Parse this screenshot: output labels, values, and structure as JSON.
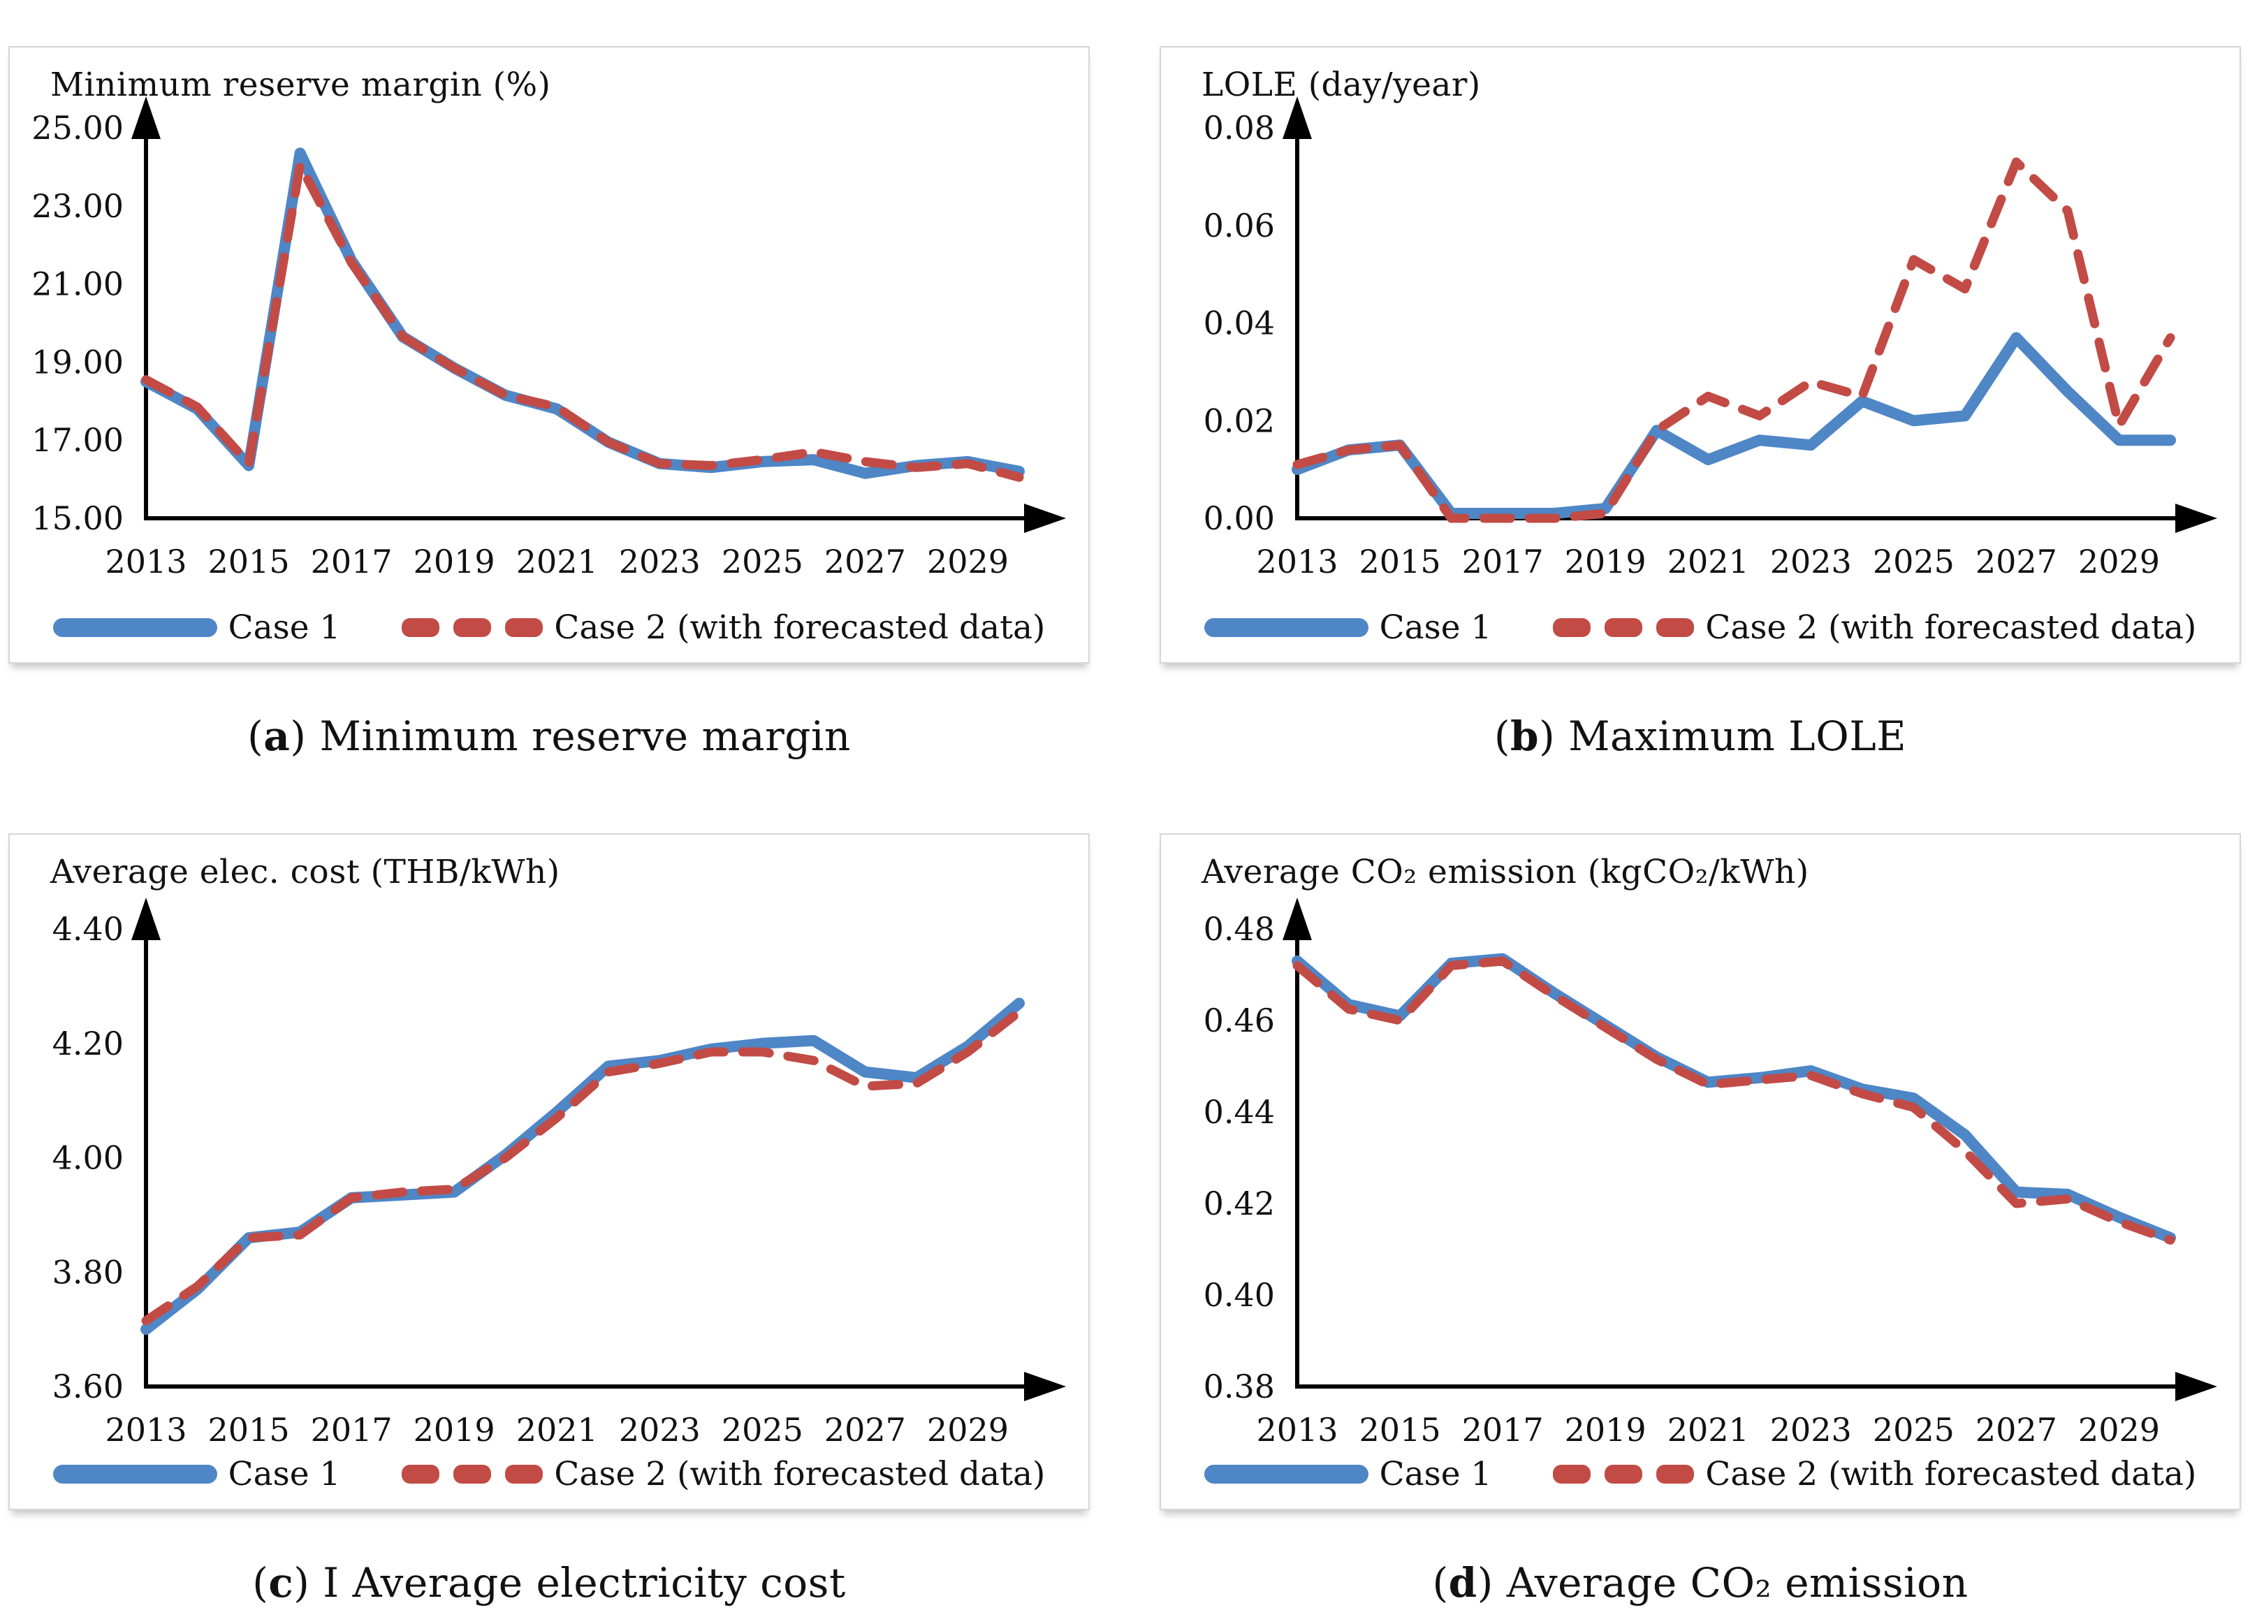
{
  "legend": {
    "case1_label": "Case 1",
    "case2_label": "Case 2 (with forecasted data)"
  },
  "colors": {
    "case1": "#4e86c6",
    "case2": "#c24b45",
    "axis": "#000000",
    "text": "#111111",
    "panel_border": "#d6d6d6"
  },
  "chart_data": [
    {
      "id": "a",
      "type": "line",
      "title": "Minimum reserve margin (%)",
      "caption": {
        "open": "(",
        "letter": "a",
        "close": ") ",
        "text": "Minimum reserve margin"
      },
      "xlabel": "",
      "ylabel": "Minimum reserve margin (%)",
      "ylim": [
        15.0,
        25.0
      ],
      "ytick_labels": [
        "15.00",
        "17.00",
        "19.00",
        "21.00",
        "23.00",
        "25.00"
      ],
      "x": [
        2013,
        2014,
        2015,
        2016,
        2017,
        2018,
        2019,
        2020,
        2021,
        2022,
        2023,
        2024,
        2025,
        2026,
        2027,
        2028,
        2029,
        2030
      ],
      "xtick_labels": [
        "2013",
        "2015",
        "2017",
        "2019",
        "2021",
        "2023",
        "2025",
        "2027",
        "2029"
      ],
      "grid": false,
      "legend_position": "bottom",
      "series": [
        {
          "name": "Case 1",
          "style": "solid",
          "color_key": "case1",
          "values": [
            18.5,
            17.8,
            16.35,
            24.35,
            21.6,
            19.65,
            18.85,
            18.15,
            17.8,
            16.95,
            16.4,
            16.3,
            16.45,
            16.5,
            16.15,
            16.35,
            16.45,
            16.2
          ]
        },
        {
          "name": "Case 2 (with forecasted data)",
          "style": "dashed",
          "color_key": "case2",
          "values": [
            18.55,
            17.85,
            16.4,
            24.05,
            21.55,
            19.65,
            18.85,
            18.15,
            17.85,
            16.95,
            16.4,
            16.35,
            16.5,
            16.7,
            16.45,
            16.3,
            16.4,
            16.05
          ]
        }
      ]
    },
    {
      "id": "b",
      "type": "line",
      "title": "LOLE (day/year)",
      "caption": {
        "open": "(",
        "letter": "b",
        "close": ") ",
        "text": "Maximum LOLE"
      },
      "xlabel": "",
      "ylabel": "LOLE (day/year)",
      "ylim": [
        0.0,
        0.08
      ],
      "ytick_labels": [
        "0.00",
        "0.02",
        "0.04",
        "0.06",
        "0.08"
      ],
      "x": [
        2013,
        2014,
        2015,
        2016,
        2017,
        2018,
        2019,
        2020,
        2021,
        2022,
        2023,
        2024,
        2025,
        2026,
        2027,
        2028,
        2029,
        2030
      ],
      "xtick_labels": [
        "2013",
        "2015",
        "2017",
        "2019",
        "2021",
        "2023",
        "2025",
        "2027",
        "2029"
      ],
      "grid": false,
      "legend_position": "bottom",
      "series": [
        {
          "name": "Case 1",
          "style": "solid",
          "color_key": "case1",
          "values": [
            0.01,
            0.014,
            0.015,
            0.001,
            0.001,
            0.001,
            0.002,
            0.018,
            0.012,
            0.016,
            0.015,
            0.024,
            0.02,
            0.021,
            0.037,
            0.026,
            0.016,
            0.016
          ]
        },
        {
          "name": "Case 2 (with forecasted data)",
          "style": "dashed",
          "color_key": "case2",
          "values": [
            0.011,
            0.014,
            0.015,
            0.0,
            0.0,
            0.0,
            0.001,
            0.018,
            0.025,
            0.021,
            0.028,
            0.025,
            0.053,
            0.047,
            0.073,
            0.063,
            0.019,
            0.037
          ]
        }
      ]
    },
    {
      "id": "c",
      "type": "line",
      "title": "Average elec. cost (THB/kWh)",
      "caption": {
        "open": "(",
        "letter": "c",
        "close": ") ",
        "text": "I Average electricity cost"
      },
      "xlabel": "",
      "ylabel": "Average elec. cost (THB/kWh)",
      "ylim": [
        3.6,
        4.4
      ],
      "ytick_labels": [
        "3.60",
        "3.80",
        "4.00",
        "4.20",
        "4.40"
      ],
      "x": [
        2013,
        2014,
        2015,
        2016,
        2017,
        2018,
        2019,
        2020,
        2021,
        2022,
        2023,
        2024,
        2025,
        2026,
        2027,
        2028,
        2029,
        2030
      ],
      "xtick_labels": [
        "2013",
        "2015",
        "2017",
        "2019",
        "2021",
        "2023",
        "2025",
        "2027",
        "2029"
      ],
      "grid": false,
      "legend_position": "bottom",
      "series": [
        {
          "name": "Case 1",
          "style": "solid",
          "color_key": "case1",
          "values": [
            3.7,
            3.77,
            3.86,
            3.87,
            3.93,
            3.935,
            3.94,
            4.005,
            4.08,
            4.16,
            4.17,
            4.19,
            4.2,
            4.205,
            4.15,
            4.14,
            4.195,
            4.27
          ]
        },
        {
          "name": "Case 2 (with forecasted data)",
          "style": "dashed",
          "color_key": "case2",
          "values": [
            3.715,
            3.775,
            3.86,
            3.865,
            3.93,
            3.94,
            3.945,
            4.0,
            4.07,
            4.15,
            4.165,
            4.185,
            4.185,
            4.17,
            4.125,
            4.13,
            4.185,
            4.255
          ]
        }
      ]
    },
    {
      "id": "d",
      "type": "line",
      "title": "Average CO₂ emission (kgCO₂/kWh)",
      "caption": {
        "open": "(",
        "letter": "d",
        "close": ") ",
        "text": "Average CO₂ emission"
      },
      "xlabel": "",
      "ylabel": "Average CO2 emission (kgCO2/kWh)",
      "ylim": [
        0.38,
        0.48
      ],
      "ytick_labels": [
        "0.38",
        "0.40",
        "0.42",
        "0.44",
        "0.46",
        "0.48"
      ],
      "x": [
        2013,
        2014,
        2015,
        2016,
        2017,
        2018,
        2019,
        2020,
        2021,
        2022,
        2023,
        2024,
        2025,
        2026,
        2027,
        2028,
        2029,
        2030
      ],
      "xtick_labels": [
        "2013",
        "2015",
        "2017",
        "2019",
        "2021",
        "2023",
        "2025",
        "2027",
        "2029"
      ],
      "grid": false,
      "legend_position": "bottom",
      "series": [
        {
          "name": "Case 1",
          "style": "solid",
          "color_key": "case1",
          "values": [
            0.473,
            0.4635,
            0.461,
            0.4725,
            0.4735,
            0.466,
            0.459,
            0.452,
            0.4465,
            0.4475,
            0.449,
            0.445,
            0.443,
            0.435,
            0.4225,
            0.422,
            0.417,
            0.4125
          ]
        },
        {
          "name": "Case 2 (with forecasted data)",
          "style": "dashed",
          "color_key": "case2",
          "values": [
            0.472,
            0.4625,
            0.46,
            0.472,
            0.473,
            0.4655,
            0.4585,
            0.4515,
            0.446,
            0.447,
            0.448,
            0.444,
            0.441,
            0.4315,
            0.42,
            0.421,
            0.416,
            0.412
          ]
        }
      ]
    }
  ]
}
